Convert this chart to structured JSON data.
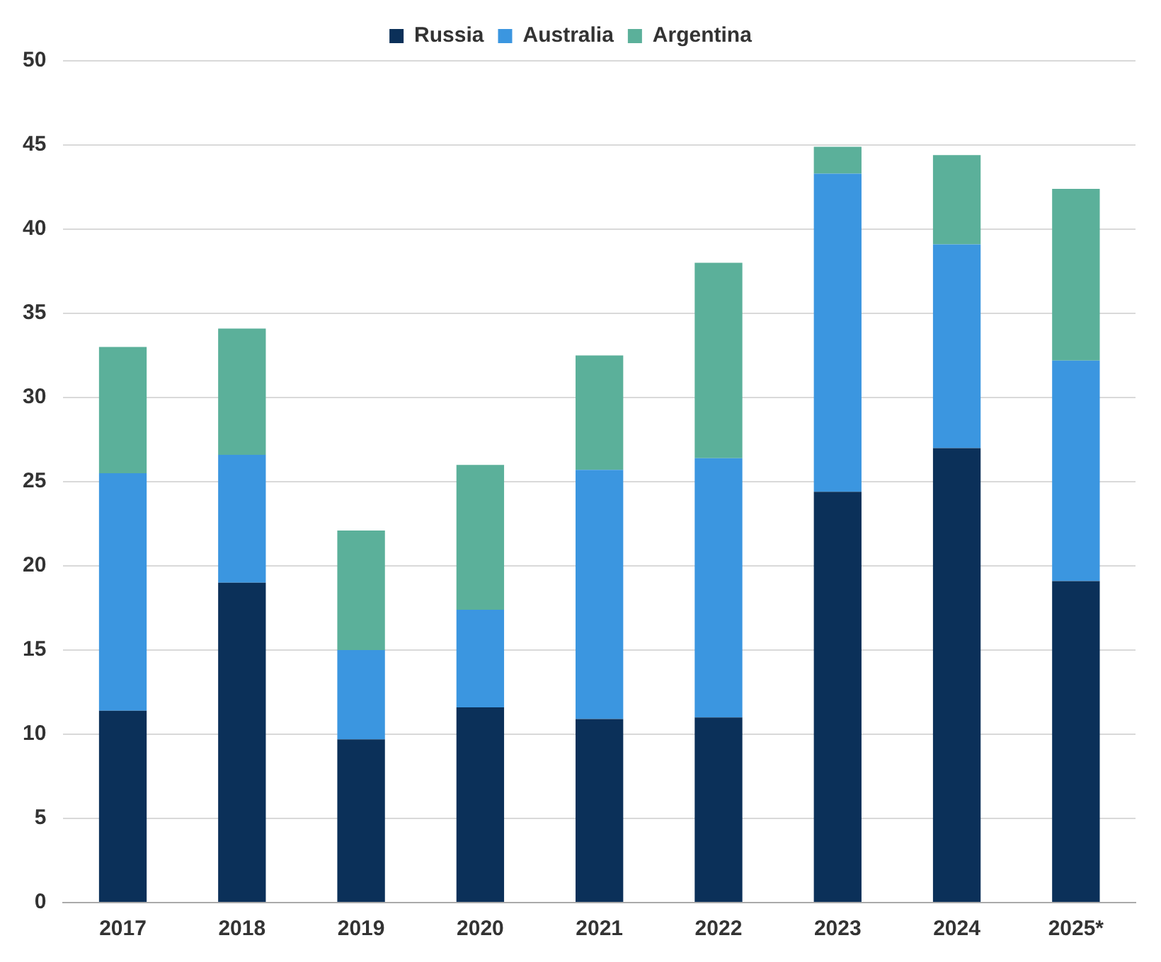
{
  "chart_data": {
    "type": "bar",
    "stacked": true,
    "categories": [
      "2017",
      "2018",
      "2019",
      "2020",
      "2021",
      "2022",
      "2023",
      "2024",
      "2025*"
    ],
    "series": [
      {
        "name": "Russia",
        "color": "#0b3059",
        "values": [
          11.4,
          19.0,
          9.7,
          11.6,
          10.9,
          11.0,
          24.4,
          27.0,
          19.1
        ]
      },
      {
        "name": "Australia",
        "color": "#3b96e0",
        "values": [
          14.1,
          7.6,
          5.3,
          5.8,
          14.8,
          15.4,
          18.9,
          12.1,
          13.1
        ]
      },
      {
        "name": "Argentina",
        "color": "#5bb09a",
        "values": [
          7.5,
          7.5,
          7.1,
          8.6,
          6.8,
          11.6,
          1.6,
          5.3,
          10.2
        ]
      }
    ],
    "ylim": [
      0,
      50
    ],
    "yticks": [
      0,
      5,
      10,
      15,
      20,
      25,
      30,
      35,
      40,
      45,
      50
    ],
    "grid": "y",
    "legend": "top"
  }
}
